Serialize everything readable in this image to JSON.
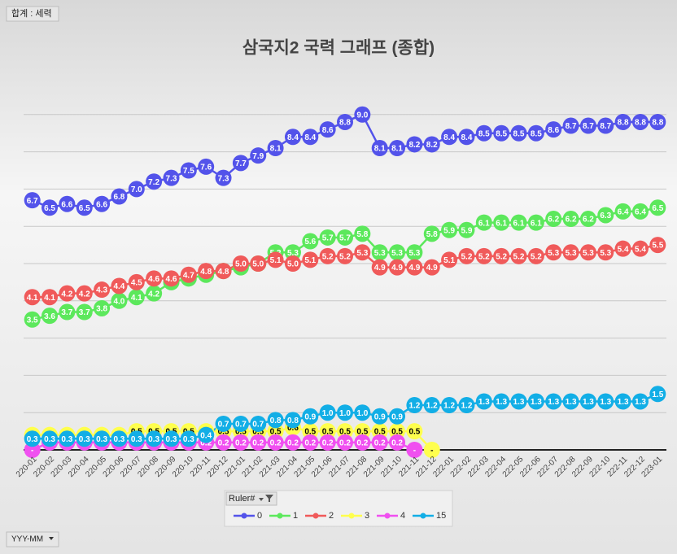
{
  "filter_label": "합계 : 세력",
  "axis_field_button": "YYY-MM",
  "chart_data": {
    "type": "line",
    "title": "삼국지2 국력 그래프 (종합)",
    "legend_title": "Ruler#",
    "categories": [
      "220-01",
      "220-02",
      "220-03",
      "220-04",
      "220-05",
      "220-06",
      "220-07",
      "220-08",
      "220-09",
      "220-10",
      "220-11",
      "220-12",
      "221-01",
      "221-02",
      "221-03",
      "221-04",
      "221-05",
      "221-06",
      "221-07",
      "221-08",
      "221-09",
      "221-10",
      "221-11",
      "221-12",
      "222-01",
      "222-02",
      "222-03",
      "222-04",
      "222-05",
      "222-06",
      "222-07",
      "222-08",
      "222-09",
      "222-10",
      "222-11",
      "222-12",
      "223-01"
    ],
    "ylim": [
      0,
      10
    ],
    "yticks": [
      0,
      1,
      2,
      3,
      4,
      5,
      6,
      7,
      8,
      9
    ],
    "grid": true,
    "series": [
      {
        "name": "0",
        "color": "#5353ea",
        "label_color": "#ffffff",
        "values": [
          6.7,
          6.5,
          6.6,
          6.5,
          6.6,
          6.8,
          7.0,
          7.2,
          7.3,
          7.5,
          7.6,
          7.3,
          7.7,
          7.9,
          8.1,
          8.4,
          8.4,
          8.6,
          8.8,
          9.0,
          8.1,
          8.1,
          8.2,
          8.2,
          8.4,
          8.4,
          8.5,
          8.5,
          8.5,
          8.5,
          8.6,
          8.7,
          8.7,
          8.7,
          8.8,
          8.8,
          8.8
        ],
        "value_labels": [
          "6.7",
          "6.5",
          "6.6",
          "6.5",
          "6.6",
          "6.8",
          "7.0",
          "7.2",
          "7.3",
          "7.5",
          "7.6",
          "7.3",
          "7.7",
          "7.9",
          "8.1",
          "8.4",
          "8.4",
          "8.6",
          "8.8",
          "9.0",
          "8.1",
          "8.1",
          "8.2",
          "8.2",
          "8.4",
          "8.4",
          "8.5",
          "8.5",
          "8.5",
          "8.5",
          "8.6",
          "8.7",
          "8.7",
          "8.7",
          "8.8",
          "8.8",
          "8.8"
        ]
      },
      {
        "name": "1",
        "color": "#5ce85c",
        "label_color": "#ffffff",
        "values": [
          3.5,
          3.6,
          3.7,
          3.7,
          3.8,
          4.0,
          4.1,
          4.2,
          4.5,
          4.6,
          4.7,
          4.8,
          4.9,
          5.0,
          5.3,
          5.3,
          5.6,
          5.7,
          5.7,
          5.8,
          5.3,
          5.3,
          5.3,
          5.8,
          5.9,
          5.9,
          6.1,
          6.1,
          6.1,
          6.1,
          6.2,
          6.2,
          6.2,
          6.3,
          6.4,
          6.4,
          6.5
        ],
        "value_labels": [
          "3.5",
          "3.6",
          "3.7",
          "3.7",
          "3.8",
          "4.0",
          "4.1",
          "4.2",
          "4.5",
          "4.6",
          "4.7",
          "4.8",
          "4.9",
          "5.0",
          "5.3",
          "5.3",
          "5.6",
          "5.7",
          "5.7",
          "5.8",
          "5.3",
          "5.3",
          "5.3",
          "5.8",
          "5.9",
          "5.9",
          "6.1",
          "6.1",
          "6.1",
          "6.1",
          "6.2",
          "6.2",
          "6.2",
          "6.3",
          "6.4",
          "6.4",
          "6.5"
        ]
      },
      {
        "name": "2",
        "color": "#f05a5a",
        "label_color": "#ffffff",
        "values": [
          4.1,
          4.1,
          4.2,
          4.2,
          4.3,
          4.4,
          4.5,
          4.6,
          4.6,
          4.7,
          4.8,
          4.8,
          5.0,
          5.0,
          5.1,
          5.0,
          5.1,
          5.2,
          5.2,
          5.3,
          4.9,
          4.9,
          4.9,
          4.9,
          5.1,
          5.2,
          5.2,
          5.2,
          5.2,
          5.2,
          5.3,
          5.3,
          5.3,
          5.3,
          5.4,
          5.4,
          5.5
        ],
        "value_labels": [
          "4.1",
          "4.1",
          "4.2",
          "4.2",
          "4.3",
          "4.4",
          "4.5",
          "4.6",
          "4.6",
          "4.7",
          "4.8",
          "4.8",
          "5.0",
          "5.0",
          "5.1",
          "5.0",
          "5.1",
          "5.2",
          "5.2",
          "5.3",
          "4.9",
          "4.9",
          "4.9",
          "4.9",
          "5.1",
          "5.2",
          "5.2",
          "5.2",
          "5.2",
          "5.2",
          "5.3",
          "5.3",
          "5.3",
          "5.3",
          "5.4",
          "5.4",
          "5.5"
        ]
      },
      {
        "name": "3",
        "color": "#ffff4d",
        "label_color": "#000000",
        "values": [
          0.4,
          0.4,
          0.4,
          0.4,
          0.4,
          0.4,
          0.5,
          0.5,
          0.5,
          0.5,
          0.5,
          0.5,
          0.5,
          0.5,
          0.5,
          0.6,
          0.5,
          0.5,
          0.5,
          0.5,
          0.5,
          0.5,
          0.5,
          0,
          null,
          null,
          null,
          null,
          null,
          null,
          null,
          null,
          null,
          null,
          null,
          null,
          null
        ],
        "value_labels": [
          "0.4",
          "0.4",
          "0.4",
          "0.4",
          "0.4",
          "0.4",
          "0.5",
          "0.5",
          "0.5",
          "0.5",
          "0.5",
          "0.5",
          "0.5",
          "0.5",
          "0.5",
          "0.6",
          "0.5",
          "0.5",
          "0.5",
          "0.5",
          "0.5",
          "0.5",
          "0.5",
          "-",
          null,
          null,
          null,
          null,
          null,
          null,
          null,
          null,
          null,
          null,
          null,
          null,
          null
        ]
      },
      {
        "name": "4",
        "color": "#f050f0",
        "label_color": "#ffffff",
        "values": [
          0,
          0.2,
          0.2,
          0.2,
          0.2,
          0.2,
          0.2,
          0.2,
          0.2,
          0.2,
          0.2,
          0.2,
          0.2,
          0.2,
          0.2,
          0.2,
          0.2,
          0.2,
          0.2,
          0.2,
          0.2,
          0.2,
          0,
          null,
          null,
          null,
          null,
          null,
          null,
          null,
          null,
          null,
          null,
          null,
          null,
          null,
          null
        ],
        "value_labels": [
          "-",
          "0.2",
          "0.2",
          "0.2",
          "0.2",
          "0.2",
          "0.2",
          "0.2",
          "0.2",
          "0.2",
          "0.2",
          "0.2",
          "0.2",
          "0.2",
          "0.2",
          "0.2",
          "0.2",
          "0.2",
          "0.2",
          "0.2",
          "0.2",
          "0.2",
          "-",
          null,
          null,
          null,
          null,
          null,
          null,
          null,
          null,
          null,
          null,
          null,
          null,
          null,
          null
        ]
      },
      {
        "name": "15",
        "color": "#12aee6",
        "label_color": "#ffffff",
        "values": [
          0.3,
          0.3,
          0.3,
          0.3,
          0.3,
          0.3,
          0.3,
          0.3,
          0.3,
          0.3,
          0.4,
          0.7,
          0.7,
          0.7,
          0.8,
          0.8,
          0.9,
          1.0,
          1.0,
          1.0,
          0.9,
          0.9,
          1.2,
          1.2,
          1.2,
          1.2,
          1.3,
          1.3,
          1.3,
          1.3,
          1.3,
          1.3,
          1.3,
          1.3,
          1.3,
          1.3,
          1.5
        ],
        "value_labels": [
          "0.3",
          "0.3",
          "0.3",
          "0.3",
          "0.3",
          "0.3",
          "0.3",
          "0.3",
          "0.3",
          "0.3",
          "0.4",
          "0.7",
          "0.7",
          "0.7",
          "0.8",
          "0.8",
          "0.9",
          "1.0",
          "1.0",
          "1.0",
          "0.9",
          "0.9",
          "1.2",
          "1.2",
          "1.2",
          "1.2",
          "1.3",
          "1.3",
          "1.3",
          "1.3",
          "1.3",
          "1.3",
          "1.3",
          "1.3",
          "1.3",
          "1.3",
          "1.5"
        ]
      }
    ]
  }
}
